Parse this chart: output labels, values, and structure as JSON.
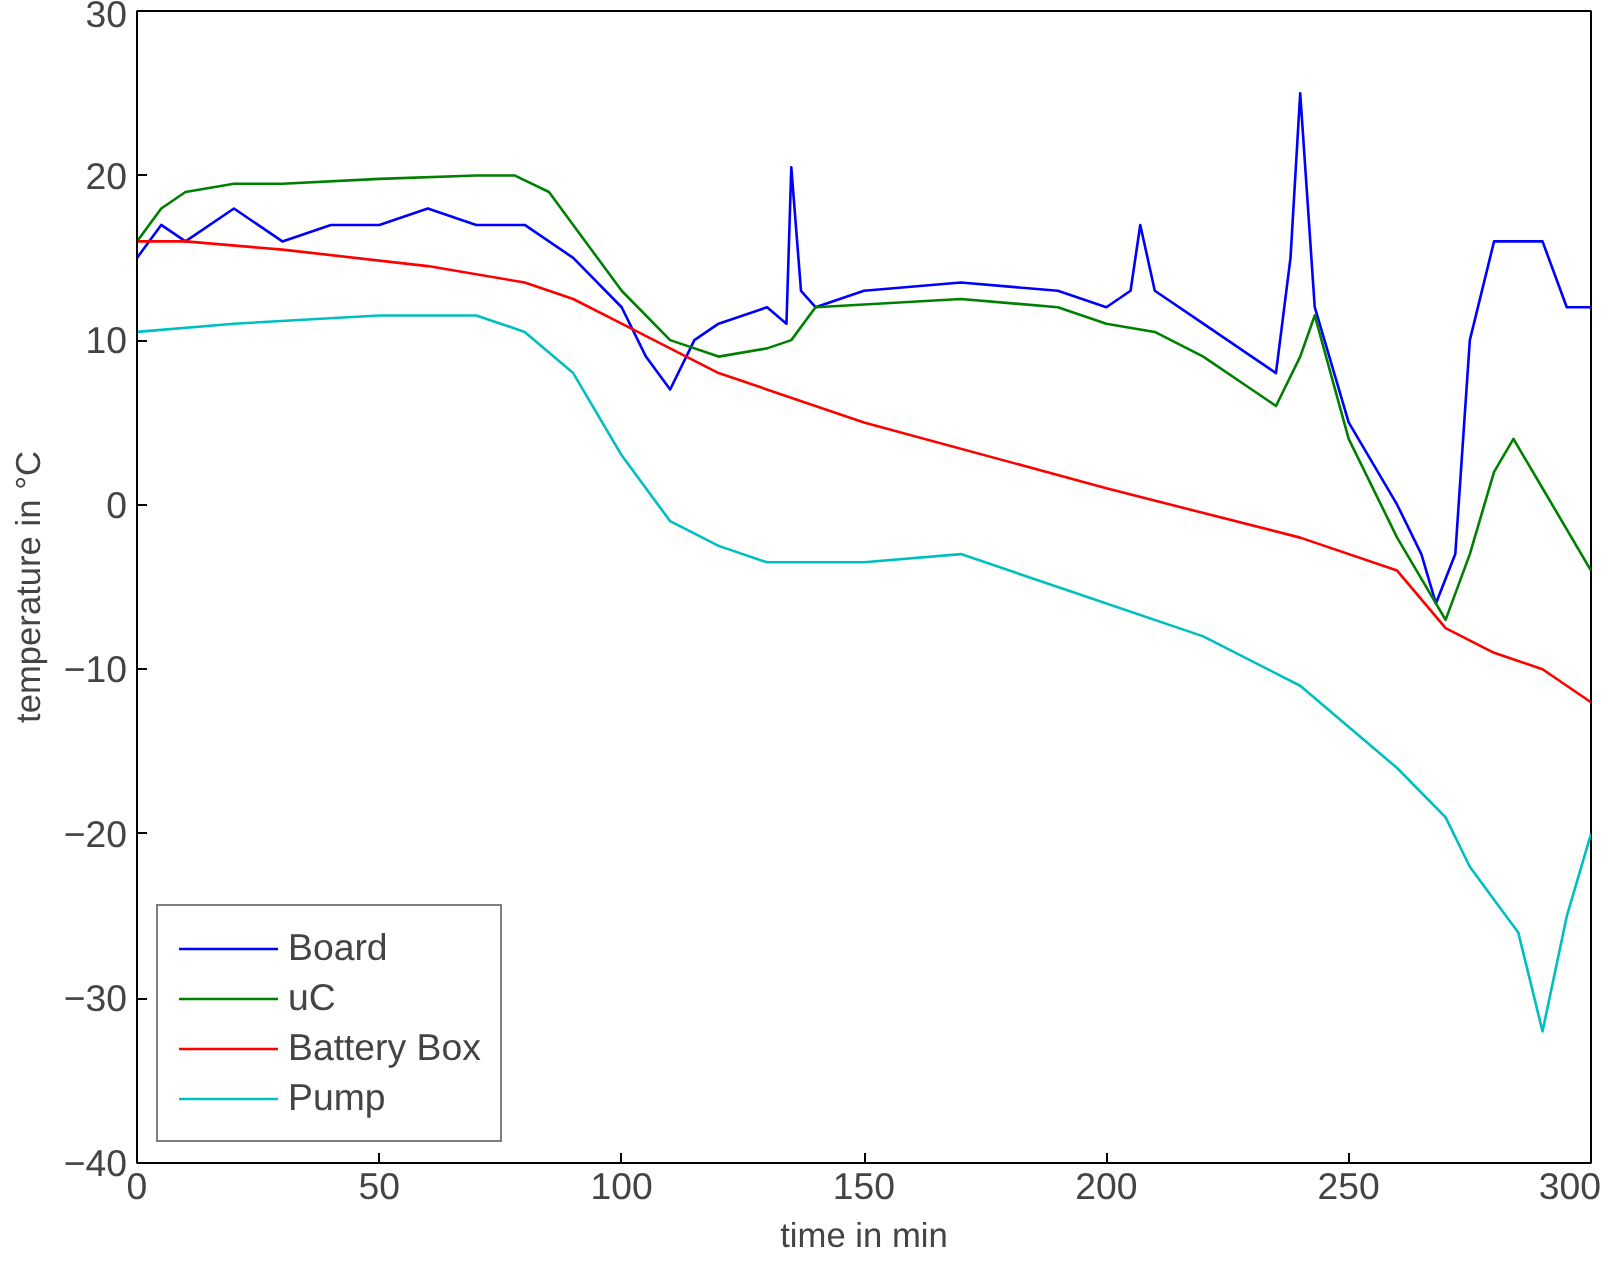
{
  "chart_data": {
    "type": "line",
    "xlabel": "time in min",
    "ylabel": "temperature in °C",
    "xlim": [
      0,
      300
    ],
    "ylim": [
      -40,
      30
    ],
    "xticks": [
      0,
      50,
      100,
      150,
      200,
      250,
      300
    ],
    "yticks": [
      -40,
      -30,
      -20,
      -10,
      0,
      10,
      20,
      30
    ],
    "grid": false,
    "legend": "bottom left",
    "line_style": "solid",
    "marker": "none",
    "series": [
      {
        "name": "Board",
        "color": "#0000ff",
        "x": [
          0,
          5,
          10,
          20,
          30,
          40,
          50,
          60,
          70,
          80,
          90,
          100,
          105,
          110,
          115,
          120,
          130,
          134,
          135,
          137,
          140,
          150,
          170,
          190,
          200,
          205,
          207,
          210,
          220,
          230,
          235,
          238,
          240,
          243,
          250,
          260,
          265,
          268,
          272,
          275,
          280,
          290,
          295,
          300
        ],
        "values": [
          15,
          17,
          16,
          18,
          16,
          17,
          17,
          18,
          17,
          17,
          15,
          12,
          9,
          7,
          10,
          11,
          12,
          11,
          20.5,
          13,
          12,
          13,
          13.5,
          13,
          12,
          13,
          17,
          13,
          11,
          9,
          8,
          15,
          25,
          12,
          5,
          0,
          -3,
          -6,
          -3,
          10,
          16,
          16,
          12,
          12
        ]
      },
      {
        "name": "uC",
        "color": "#008000",
        "x": [
          0,
          5,
          10,
          20,
          30,
          50,
          70,
          78,
          85,
          90,
          100,
          110,
          120,
          130,
          135,
          140,
          170,
          190,
          200,
          210,
          220,
          230,
          235,
          240,
          243,
          250,
          260,
          270,
          275,
          280,
          284,
          290,
          300
        ],
        "values": [
          16,
          18,
          19,
          19.5,
          19.5,
          19.8,
          20,
          20,
          19,
          17,
          13,
          10,
          9,
          9.5,
          10,
          12,
          12.5,
          12,
          11,
          10.5,
          9,
          7,
          6,
          9,
          11.5,
          4,
          -2,
          -7,
          -3,
          2,
          4,
          1,
          -4
        ]
      },
      {
        "name": "Battery Box",
        "color": "#ff0000",
        "x": [
          0,
          10,
          30,
          60,
          80,
          90,
          100,
          120,
          150,
          200,
          240,
          260,
          270,
          280,
          290,
          300
        ],
        "values": [
          16,
          16,
          15.5,
          14.5,
          13.5,
          12.5,
          11,
          8,
          5,
          1,
          -2,
          -4,
          -7.5,
          -9,
          -10,
          -12
        ]
      },
      {
        "name": "Pump",
        "color": "#00bfbf",
        "x": [
          0,
          20,
          50,
          70,
          80,
          90,
          100,
          110,
          120,
          130,
          150,
          170,
          190,
          220,
          240,
          260,
          270,
          275,
          280,
          285,
          290,
          295,
          300
        ],
        "values": [
          10.5,
          11,
          11.5,
          11.5,
          10.5,
          8,
          3,
          -1,
          -2.5,
          -3.5,
          -3.5,
          -3,
          -5,
          -8,
          -11,
          -16,
          -19,
          -22,
          -24,
          -26,
          -32,
          -25,
          -20
        ]
      }
    ]
  }
}
